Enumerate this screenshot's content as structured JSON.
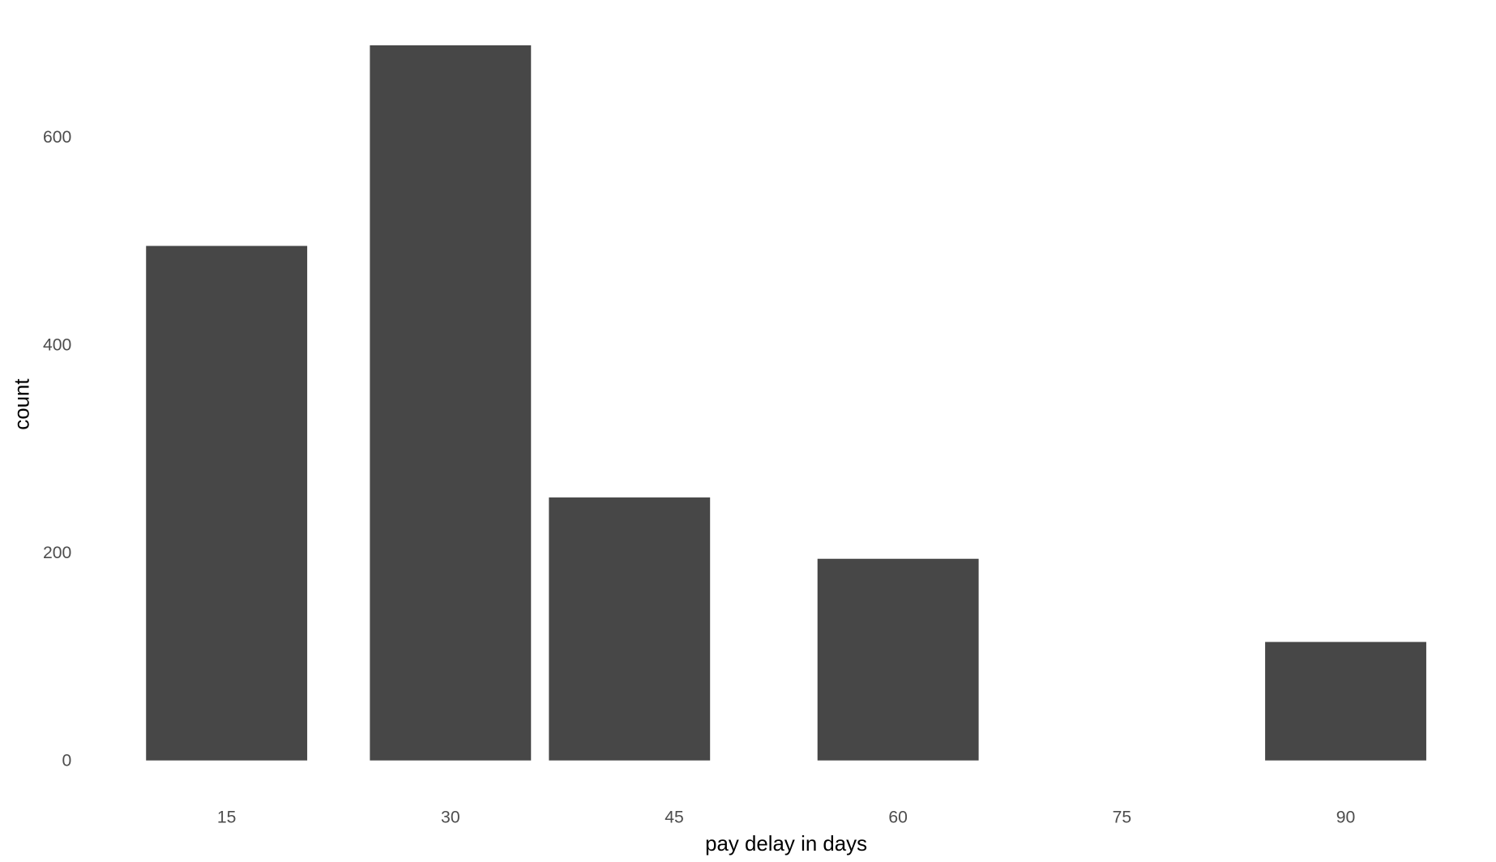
{
  "chart_data": {
    "type": "bar",
    "x_label": "pay delay in days",
    "y_label": "count",
    "x": [
      15,
      30,
      42,
      60,
      90
    ],
    "values": [
      495,
      688,
      253,
      194,
      114
    ],
    "bar_width": 10.8,
    "color": "#474747",
    "xlim": [
      5.31,
      99.69
    ],
    "xticks": [
      15,
      30,
      45,
      60,
      75,
      90
    ],
    "minor_xticks": [
      7.5,
      22.5,
      37.5,
      52.5,
      67.5,
      82.5,
      97.5
    ],
    "ylim": [
      -34.4,
      722.4
    ],
    "yticks": [
      0,
      200,
      400,
      600
    ],
    "minor_yticks": [
      100,
      300,
      500,
      700
    ],
    "grid": true
  }
}
